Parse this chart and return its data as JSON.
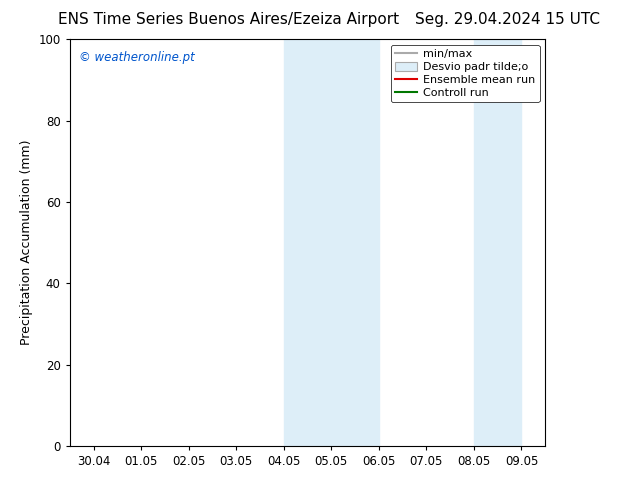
{
  "title_left": "ENS Time Series Buenos Aires/Ezeiza Airport",
  "title_right": "Seg. 29.04.2024 15 UTC",
  "ylabel": "Precipitation Accumulation (mm)",
  "watermark": "© weatheronline.pt",
  "watermark_color": "#0055cc",
  "xtick_labels": [
    "30.04",
    "01.05",
    "02.05",
    "03.05",
    "04.05",
    "05.05",
    "06.05",
    "07.05",
    "08.05",
    "09.05"
  ],
  "shaded_regions": [
    {
      "xstart": 4.0,
      "xend": 5.0,
      "color": "#ddeef8"
    },
    {
      "xstart": 5.0,
      "xend": 6.0,
      "color": "#ddeef8"
    },
    {
      "xstart": 8.0,
      "xend": 8.5,
      "color": "#ddeef8"
    },
    {
      "xstart": 8.5,
      "xend": 9.0,
      "color": "#ddeef8"
    }
  ],
  "ylim": [
    0,
    100
  ],
  "yticks": [
    0,
    20,
    40,
    60,
    80,
    100
  ],
  "xlim": [
    -0.5,
    9.5
  ],
  "legend_entries": [
    {
      "label": "min/max",
      "color": "#aaaaaa",
      "lw": 1.5,
      "type": "line"
    },
    {
      "label": "Desvio padr tilde;o",
      "color": "#ddeef8",
      "border_color": "#aaaaaa",
      "type": "patch"
    },
    {
      "label": "Ensemble mean run",
      "color": "#dd0000",
      "lw": 1.5,
      "type": "line"
    },
    {
      "label": "Controll run",
      "color": "#007700",
      "lw": 1.5,
      "type": "line"
    }
  ],
  "bg_color": "#ffffff",
  "plot_bg_color": "#ffffff",
  "title_fontsize": 11,
  "label_fontsize": 9,
  "tick_fontsize": 8.5,
  "legend_fontsize": 8
}
